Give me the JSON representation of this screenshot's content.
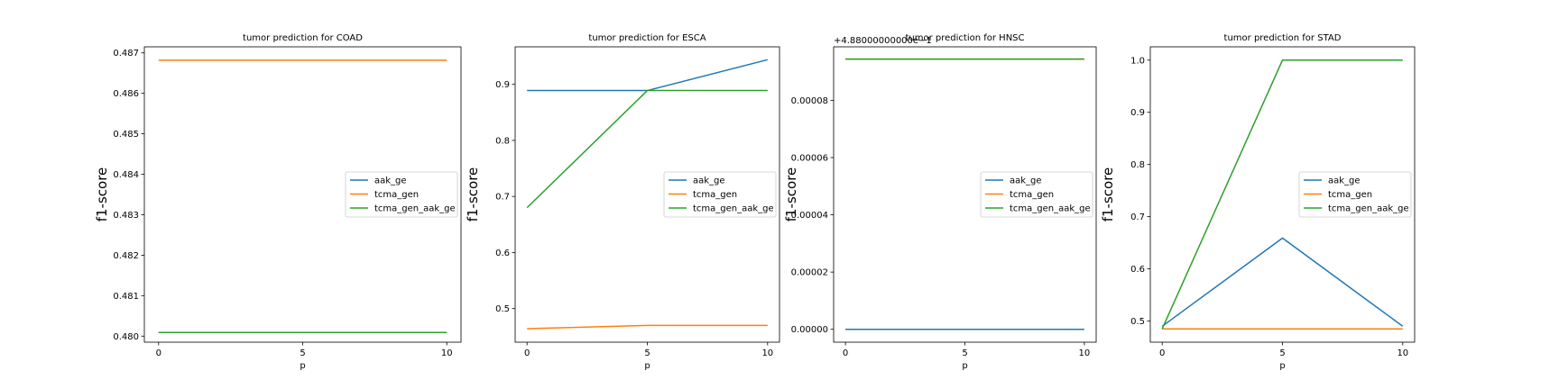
{
  "chart_data": [
    {
      "type": "line",
      "title": "tumor prediction for COAD",
      "xlabel": "p",
      "ylabel": "f1-score",
      "x": [
        0,
        5,
        10
      ],
      "xticks": [
        "0",
        "5",
        "10"
      ],
      "ylim": [
        0.47985,
        0.48715
      ],
      "yticks": [
        "0.480",
        "0.481",
        "0.482",
        "0.483",
        "0.484",
        "0.485",
        "0.486",
        "0.487"
      ],
      "ytick_values": [
        0.48,
        0.481,
        0.482,
        0.483,
        0.484,
        0.485,
        0.486,
        0.487
      ],
      "offset_text": "",
      "series": [
        {
          "name": "aak_ge",
          "color": "#1f77b4",
          "values": [
            0.48009,
            0.48009,
            0.48009
          ]
        },
        {
          "name": "tcma_gen",
          "color": "#ff7f0e",
          "values": [
            0.48682,
            0.48682,
            0.48682
          ]
        },
        {
          "name": "tcma_gen_aak_ge",
          "color": "#2ca02c",
          "values": [
            0.48009,
            0.48009,
            0.48009
          ]
        }
      ],
      "legend": "center-right",
      "grid": false
    },
    {
      "type": "line",
      "title": "tumor prediction for ESCA",
      "xlabel": "p",
      "ylabel": "f1-score",
      "x": [
        0,
        5,
        10
      ],
      "xticks": [
        "0",
        "5",
        "10"
      ],
      "ylim": [
        0.44,
        0.967
      ],
      "yticks": [
        "0.5",
        "0.6",
        "0.7",
        "0.8",
        "0.9"
      ],
      "ytick_values": [
        0.5,
        0.6,
        0.7,
        0.8,
        0.9
      ],
      "offset_text": "",
      "series": [
        {
          "name": "aak_ge",
          "color": "#1f77b4",
          "values": [
            0.889,
            0.889,
            0.944
          ]
        },
        {
          "name": "tcma_gen",
          "color": "#ff7f0e",
          "values": [
            0.464,
            0.47,
            0.47
          ]
        },
        {
          "name": "tcma_gen_aak_ge",
          "color": "#2ca02c",
          "values": [
            0.68,
            0.889,
            0.889
          ]
        }
      ],
      "legend": "center-right",
      "grid": false
    },
    {
      "type": "line",
      "title": "tumor prediction for HNSC",
      "xlabel": "p",
      "ylabel": "f1-score",
      "x": [
        0,
        5,
        10
      ],
      "xticks": [
        "0",
        "5",
        "10"
      ],
      "ylim": [
        -4.5e-06,
        9.87e-05
      ],
      "yticks": [
        "0.00000",
        "0.00002",
        "0.00004",
        "0.00006",
        "0.00008"
      ],
      "ytick_values": [
        0.0,
        2e-05,
        4e-05,
        6e-05,
        8e-05
      ],
      "offset_text": "+4.88000000000e−1",
      "series": [
        {
          "name": "aak_ge",
          "color": "#1f77b4",
          "values": [
            0.0,
            0.0,
            0.0
          ]
        },
        {
          "name": "tcma_gen",
          "color": "#ff7f0e",
          "values": [
            9.44e-05,
            9.44e-05,
            9.44e-05
          ]
        },
        {
          "name": "tcma_gen_aak_ge",
          "color": "#2ca02c",
          "values": [
            9.44e-05,
            9.44e-05,
            9.44e-05
          ]
        }
      ],
      "legend": "center-right",
      "grid": false
    },
    {
      "type": "line",
      "title": "tumor prediction for STAD",
      "xlabel": "p",
      "ylabel": "f1-score",
      "x": [
        0,
        5,
        10
      ],
      "xticks": [
        "0",
        "5",
        "10"
      ],
      "ylim": [
        0.4595,
        1.0255
      ],
      "yticks": [
        "0.5",
        "0.6",
        "0.7",
        "0.8",
        "0.9",
        "1.0"
      ],
      "ytick_values": [
        0.5,
        0.6,
        0.7,
        0.8,
        0.9,
        1.0
      ],
      "offset_text": "",
      "series": [
        {
          "name": "aak_ge",
          "color": "#1f77b4",
          "values": [
            0.49,
            0.659,
            0.49
          ]
        },
        {
          "name": "tcma_gen",
          "color": "#ff7f0e",
          "values": [
            0.485,
            0.485,
            0.485
          ]
        },
        {
          "name": "tcma_gen_aak_ge",
          "color": "#2ca02c",
          "values": [
            0.485,
            1.0,
            1.0
          ]
        }
      ],
      "legend": "center-right",
      "grid": false
    }
  ]
}
